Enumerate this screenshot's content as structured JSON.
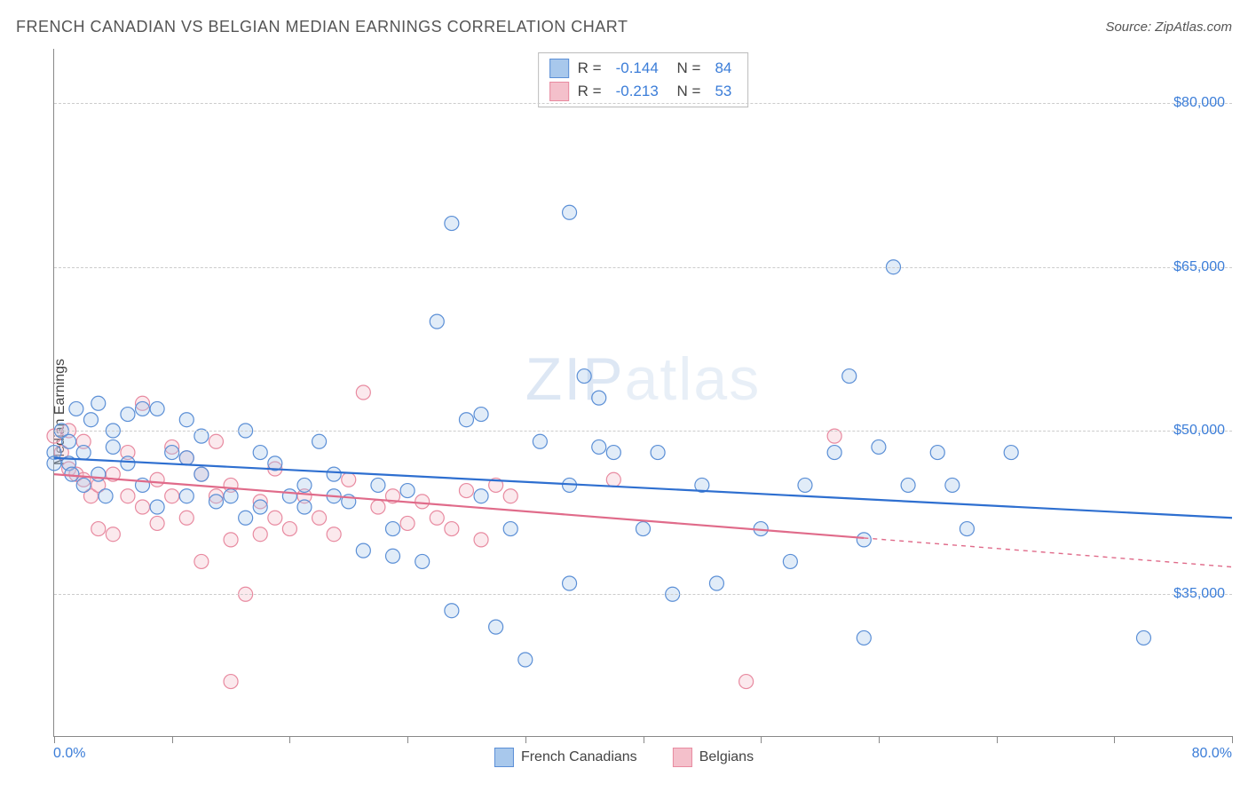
{
  "title": "FRENCH CANADIAN VS BELGIAN MEDIAN EARNINGS CORRELATION CHART",
  "source": "Source: ZipAtlas.com",
  "ylabel": "Median Earnings",
  "watermark_bold": "ZIP",
  "watermark_thin": "atlas",
  "chart": {
    "type": "scatter",
    "xlim": [
      0,
      80
    ],
    "ylim": [
      22000,
      85000
    ],
    "x_axis_min_label": "0.0%",
    "x_axis_max_label": "80.0%",
    "x_ticks": [
      0,
      8,
      16,
      24,
      32,
      40,
      48,
      56,
      64,
      72,
      80
    ],
    "y_gridlines": [
      35000,
      50000,
      65000,
      80000
    ],
    "y_tick_labels": [
      "$35,000",
      "$50,000",
      "$65,000",
      "$80,000"
    ],
    "background_color": "#ffffff",
    "grid_color": "#cccccc",
    "axis_color": "#888888",
    "label_color": "#3b7dd8",
    "marker_radius": 8,
    "marker_fill_opacity": 0.35,
    "marker_stroke_width": 1.2,
    "line_width": 2.2,
    "series": [
      {
        "name": "French Canadians",
        "color_fill": "#a8c8ec",
        "color_stroke": "#5b8fd6",
        "line_color": "#2e6fd0",
        "R": "-0.144",
        "N": "84",
        "trend": {
          "x1": 0,
          "y1": 47500,
          "x2": 80,
          "y2": 42000,
          "solid_until_x": 80
        },
        "points": [
          [
            0,
            48000
          ],
          [
            0,
            47000
          ],
          [
            0.5,
            50000
          ],
          [
            1,
            49000
          ],
          [
            1,
            47000
          ],
          [
            1.2,
            46000
          ],
          [
            1.5,
            52000
          ],
          [
            2,
            45000
          ],
          [
            2,
            48000
          ],
          [
            2.5,
            51000
          ],
          [
            3,
            52500
          ],
          [
            3,
            46000
          ],
          [
            3.5,
            44000
          ],
          [
            4,
            50000
          ],
          [
            4,
            48500
          ],
          [
            5,
            51500
          ],
          [
            5,
            47000
          ],
          [
            6,
            52000
          ],
          [
            6,
            45000
          ],
          [
            7,
            52000
          ],
          [
            7,
            43000
          ],
          [
            8,
            48000
          ],
          [
            9,
            51000
          ],
          [
            9,
            47500
          ],
          [
            9,
            44000
          ],
          [
            10,
            46000
          ],
          [
            10,
            49500
          ],
          [
            11,
            43500
          ],
          [
            12,
            44000
          ],
          [
            13,
            50000
          ],
          [
            13,
            42000
          ],
          [
            14,
            43000
          ],
          [
            14,
            48000
          ],
          [
            15,
            47000
          ],
          [
            16,
            44000
          ],
          [
            17,
            43000
          ],
          [
            17,
            45000
          ],
          [
            18,
            49000
          ],
          [
            19,
            46000
          ],
          [
            19,
            44000
          ],
          [
            20,
            43500
          ],
          [
            21,
            39000
          ],
          [
            22,
            45000
          ],
          [
            23,
            38500
          ],
          [
            23,
            41000
          ],
          [
            24,
            44500
          ],
          [
            25,
            38000
          ],
          [
            26,
            60000
          ],
          [
            27,
            69000
          ],
          [
            27,
            33500
          ],
          [
            28,
            51000
          ],
          [
            29,
            44000
          ],
          [
            29,
            51500
          ],
          [
            30,
            32000
          ],
          [
            31,
            41000
          ],
          [
            32,
            29000
          ],
          [
            33,
            49000
          ],
          [
            35,
            70000
          ],
          [
            35,
            45000
          ],
          [
            35,
            36000
          ],
          [
            36,
            55000
          ],
          [
            37,
            48500
          ],
          [
            37,
            53000
          ],
          [
            38,
            48000
          ],
          [
            40,
            41000
          ],
          [
            41,
            48000
          ],
          [
            42,
            35000
          ],
          [
            44,
            45000
          ],
          [
            45,
            36000
          ],
          [
            48,
            41000
          ],
          [
            50,
            38000
          ],
          [
            51,
            45000
          ],
          [
            53,
            48000
          ],
          [
            54,
            55000
          ],
          [
            55,
            31000
          ],
          [
            55,
            40000
          ],
          [
            56,
            48500
          ],
          [
            57,
            65000
          ],
          [
            58,
            45000
          ],
          [
            60,
            48000
          ],
          [
            61,
            45000
          ],
          [
            62,
            41000
          ],
          [
            65,
            48000
          ],
          [
            74,
            31000
          ]
        ]
      },
      {
        "name": "Belgians",
        "color_fill": "#f4c0cb",
        "color_stroke": "#e88aa0",
        "line_color": "#e06b8a",
        "R": "-0.213",
        "N": "53",
        "trend": {
          "x1": 0,
          "y1": 46000,
          "x2": 80,
          "y2": 37500,
          "solid_until_x": 55
        },
        "points": [
          [
            0,
            49500
          ],
          [
            0.5,
            48000
          ],
          [
            1,
            50000
          ],
          [
            1,
            46500
          ],
          [
            1.5,
            46000
          ],
          [
            2,
            45500
          ],
          [
            2,
            49000
          ],
          [
            2.5,
            44000
          ],
          [
            3,
            41000
          ],
          [
            3,
            45000
          ],
          [
            4,
            46000
          ],
          [
            4,
            40500
          ],
          [
            5,
            48000
          ],
          [
            5,
            44000
          ],
          [
            6,
            52500
          ],
          [
            6,
            43000
          ],
          [
            7,
            41500
          ],
          [
            7,
            45500
          ],
          [
            8,
            44000
          ],
          [
            8,
            48500
          ],
          [
            9,
            47500
          ],
          [
            9,
            42000
          ],
          [
            10,
            46000
          ],
          [
            10,
            38000
          ],
          [
            11,
            49000
          ],
          [
            11,
            44000
          ],
          [
            12,
            45000
          ],
          [
            12,
            40000
          ],
          [
            12,
            27000
          ],
          [
            13,
            35000
          ],
          [
            14,
            43500
          ],
          [
            14,
            40500
          ],
          [
            15,
            42000
          ],
          [
            15,
            46500
          ],
          [
            16,
            41000
          ],
          [
            17,
            44000
          ],
          [
            18,
            42000
          ],
          [
            19,
            40500
          ],
          [
            20,
            45500
          ],
          [
            21,
            53500
          ],
          [
            22,
            43000
          ],
          [
            23,
            44000
          ],
          [
            24,
            41500
          ],
          [
            25,
            43500
          ],
          [
            26,
            42000
          ],
          [
            27,
            41000
          ],
          [
            28,
            44500
          ],
          [
            29,
            40000
          ],
          [
            30,
            45000
          ],
          [
            31,
            44000
          ],
          [
            38,
            45500
          ],
          [
            47,
            27000
          ],
          [
            53,
            49500
          ]
        ]
      }
    ]
  },
  "legend_bottom": [
    {
      "label": "French Canadians",
      "fill": "#a8c8ec",
      "stroke": "#5b8fd6"
    },
    {
      "label": "Belgians",
      "fill": "#f4c0cb",
      "stroke": "#e88aa0"
    }
  ]
}
